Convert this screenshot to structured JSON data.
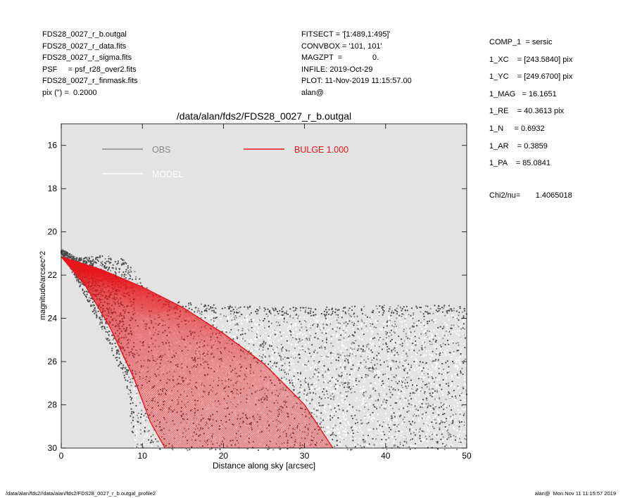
{
  "header": {
    "left_lines": [
      "FDS28_0027_r_b.outgal",
      "FDS28_0027_r_data.fits",
      "FDS28_0027_r_sigma.fits",
      "PSF     = psf_r28_over2.fits",
      "FDS28_0027_r_finmask.fits",
      "pix (\") =  0.2000"
    ],
    "mid_lines": [
      "FITSECT = '[1:489,1:495]'",
      "CONVBOX = '101, 101'",
      "MAGZPT  =              0.",
      "INFILE: 2019-Oct-29",
      "PLOT: 11-Nov-2019 11:15:57.00",
      "alan@"
    ],
    "params": [
      "COMP_1  = sersic",
      "1_XC    = [243.5840] pix",
      "1_YC    = [249.6700] pix",
      "1_MAG   = 16.1651",
      "1_RE    = 40.3613 pix",
      "1_N     = 0.6932",
      "1_AR    = 0.3859",
      "1_PA    = 85.0841"
    ],
    "chi2": "Chi2/nu=       1.4065018"
  },
  "footer": {
    "left": "/data/alan/fds2//data/alan/fds2/FDS28_0027_r_b.outgal_profile2",
    "right": "alan@  Mon Nov 11 11:15:57 2019"
  },
  "colors": {
    "plot_bg": "#e3e3e3",
    "obs_dark": "#4a4a4a",
    "obs_gray": "#8a8a8a",
    "model": "#ffffff",
    "bulge": "#e8161b"
  },
  "chart_data": {
    "type": "scatter",
    "title": "/data/alan/fds2/FDS28_0027_r_b.outgal",
    "xlabel": "Distance along sky [arcsec]",
    "ylabel": "magnitude/arcsec^2",
    "xlim": [
      0,
      50
    ],
    "ylim": [
      30,
      15
    ],
    "xticks": [
      0,
      10,
      20,
      30,
      40,
      50
    ],
    "yticks": [
      16,
      18,
      20,
      22,
      24,
      26,
      28,
      30
    ],
    "grid": false,
    "legend": {
      "placement": "top-left",
      "entries": [
        {
          "label": "OBS",
          "color": "#8a8a8a"
        },
        {
          "label": "MODEL",
          "color": "#ffffff"
        },
        {
          "label": "BULGE  1.000",
          "color": "#e8161b"
        }
      ]
    },
    "series": [
      {
        "name": "OBS",
        "kind": "scatter",
        "description_points": "dense cloud of observed pixel values",
        "envelope_upper": [
          [
            0,
            20.8
          ],
          [
            2,
            21.2
          ],
          [
            5,
            21.1
          ],
          [
            8,
            21.2
          ],
          [
            10,
            22.3
          ],
          [
            13,
            23.2
          ],
          [
            20,
            23.4
          ],
          [
            30,
            23.5
          ],
          [
            40,
            23.4
          ],
          [
            50,
            23.4
          ]
        ],
        "envelope_lower": [
          [
            0,
            21.0
          ],
          [
            1,
            21.6
          ],
          [
            5,
            24.5
          ],
          [
            8,
            27.0
          ],
          [
            9,
            30.0
          ]
        ]
      },
      {
        "name": "BULGE  1.000",
        "kind": "band",
        "bright_edge": [
          [
            0,
            21.15
          ],
          [
            5,
            21.75
          ],
          [
            10,
            22.55
          ],
          [
            15,
            23.5
          ],
          [
            20,
            24.7
          ],
          [
            25,
            26.1
          ],
          [
            30,
            28.0
          ],
          [
            33.5,
            30.0
          ]
        ],
        "faint_edge": [
          [
            0,
            21.15
          ],
          [
            3,
            22.5
          ],
          [
            6,
            24.4
          ],
          [
            9,
            26.8
          ],
          [
            11,
            28.8
          ],
          [
            12.8,
            30.0
          ]
        ]
      }
    ]
  }
}
